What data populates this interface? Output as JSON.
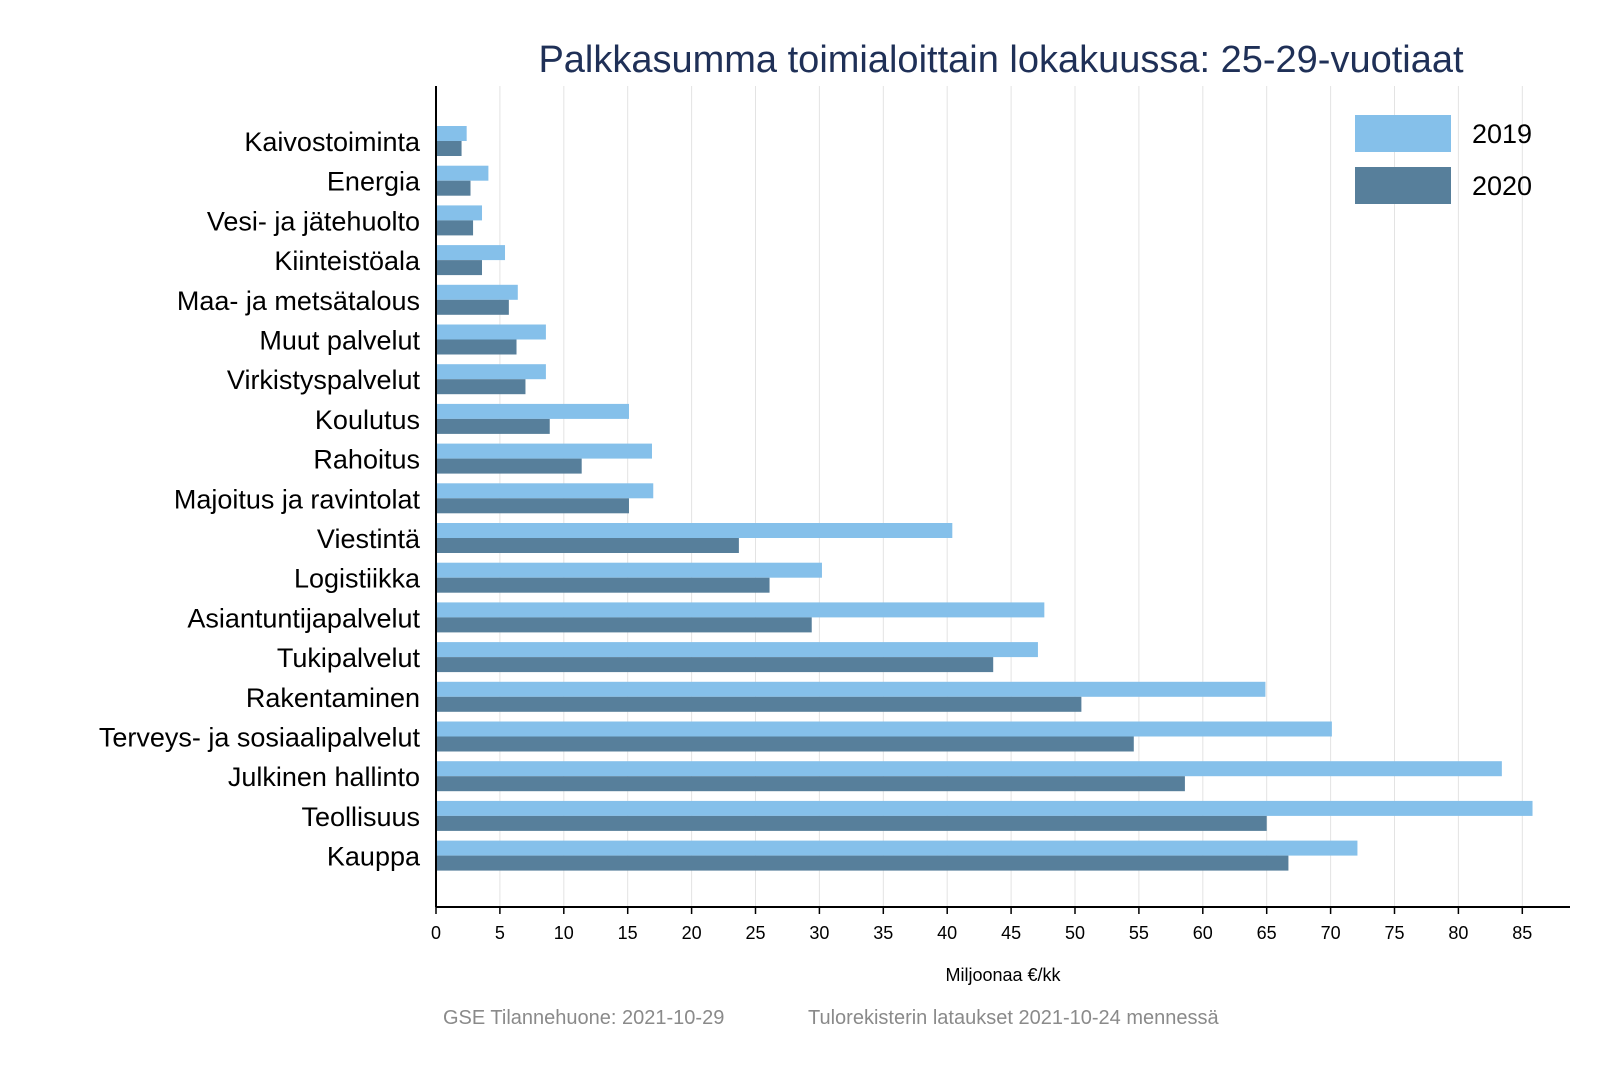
{
  "chart_data": {
    "type": "bar",
    "orientation": "horizontal",
    "title": "Palkkasumma toimialoittain lokakuussa: 25-29-vuotiaat",
    "xlabel": "Miljoonaa €/kk",
    "ylabel": "",
    "xlim": [
      0,
      88
    ],
    "x_ticks": [
      "0",
      "5",
      "10",
      "15",
      "20",
      "25",
      "30",
      "35",
      "40",
      "45",
      "50",
      "55",
      "60",
      "65",
      "70",
      "75",
      "80",
      "85"
    ],
    "grid": "vertical",
    "legend_position": "top-right",
    "categories": [
      "Kaivostoiminta",
      "Energia",
      "Vesi- ja jätehuolto",
      "Kiinteistöala",
      "Maa- ja metsätalous",
      "Muut palvelut",
      "Virkistyspalvelut",
      "Koulutus",
      "Rahoitus",
      "Majoitus ja ravintolat",
      "Viestintä",
      "Logistiikka",
      "Asiantuntijapalvelut",
      "Tukipalvelut",
      "Rakentaminen",
      "Terveys- ja sosiaalipalvelut",
      "Julkinen hallinto",
      "Teollisuus",
      "Kauppa"
    ],
    "series": [
      {
        "name": "2019",
        "color": "#85c0ea",
        "values": [
          2.4,
          4.1,
          3.6,
          5.4,
          6.4,
          8.6,
          8.6,
          15.1,
          16.9,
          17.0,
          40.4,
          30.2,
          47.6,
          47.1,
          64.9,
          70.1,
          83.4,
          85.8,
          72.1
        ]
      },
      {
        "name": "2020",
        "color": "#577f9b",
        "values": [
          2.0,
          2.7,
          2.9,
          3.6,
          5.7,
          6.3,
          7.0,
          8.9,
          11.4,
          15.1,
          23.7,
          26.1,
          29.4,
          43.6,
          50.5,
          54.6,
          58.6,
          65.0,
          66.7
        ]
      }
    ]
  },
  "footer": {
    "source": "GSE Tilannehuone: 2021-10-29",
    "note": "Tulorekisterin lataukset 2021-10-24 mennessä"
  }
}
